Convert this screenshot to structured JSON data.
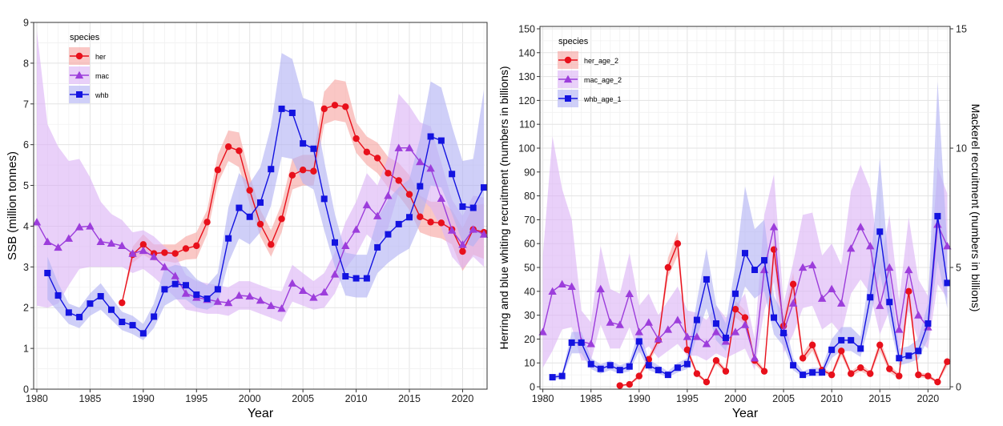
{
  "colors": {
    "her": "#e8101b",
    "mac": "#9c3ddb",
    "whb": "#1313e0",
    "her_band": "#f7a5a2",
    "mac_band": "#dcb3f6",
    "whb_band": "#b1b1f4",
    "grid": "#e6e6e6",
    "axis_text": "#222222"
  },
  "legend_title": "species",
  "chart_data": [
    {
      "type": "line",
      "xlabel": "Year",
      "ylabel": "SSB (million tonnes)",
      "xlim": [
        1979.7,
        2022.3
      ],
      "ylim": [
        0,
        9
      ],
      "xticks": [
        1980,
        1985,
        1990,
        1995,
        2000,
        2005,
        2010,
        2015,
        2020
      ],
      "yticks": [
        0,
        1,
        2,
        3,
        4,
        5,
        6,
        7,
        8,
        9
      ],
      "legend": "top-left",
      "grid": true,
      "series": [
        {
          "name": "her",
          "marker": "circle",
          "color_key": "her",
          "x": [
            1988,
            1989,
            1990,
            1991,
            1992,
            1993,
            1994,
            1995,
            1996,
            1997,
            1998,
            1999,
            2000,
            2001,
            2002,
            2003,
            2004,
            2005,
            2006,
            2007,
            2008,
            2009,
            2010,
            2011,
            2012,
            2013,
            2014,
            2015,
            2016,
            2017,
            2018,
            2019,
            2020,
            2021,
            2022
          ],
          "y": [
            2.12,
            3.3,
            3.55,
            3.33,
            3.35,
            3.33,
            3.45,
            3.52,
            4.1,
            5.38,
            5.95,
            5.85,
            4.88,
            4.05,
            3.55,
            4.18,
            5.25,
            5.38,
            5.35,
            6.88,
            6.97,
            6.93,
            6.15,
            5.82,
            5.67,
            5.3,
            5.12,
            4.78,
            4.23,
            4.1,
            4.08,
            3.92,
            3.38,
            3.92,
            3.85
          ],
          "lower": [
            2.12,
            3.1,
            3.3,
            3.15,
            3.15,
            3.1,
            3.18,
            3.2,
            3.8,
            5.05,
            5.6,
            5.45,
            4.55,
            3.75,
            3.25,
            3.85,
            4.9,
            5.0,
            5.0,
            6.5,
            6.6,
            6.55,
            5.8,
            5.5,
            5.3,
            4.95,
            4.75,
            4.4,
            3.85,
            3.75,
            3.7,
            3.55,
            2.9,
            3.3,
            3.2
          ],
          "upper": [
            2.12,
            3.5,
            3.8,
            3.55,
            3.55,
            3.55,
            3.75,
            3.85,
            4.4,
            5.75,
            6.35,
            6.3,
            5.25,
            4.4,
            3.9,
            4.55,
            5.65,
            5.75,
            5.75,
            7.3,
            7.6,
            7.55,
            6.55,
            6.2,
            6.05,
            5.7,
            5.55,
            5.25,
            4.75,
            4.6,
            4.6,
            4.4,
            3.95,
            4.5,
            4.55
          ]
        },
        {
          "name": "mac",
          "marker": "triangle",
          "color_key": "mac",
          "x": [
            1980,
            1981,
            1982,
            1983,
            1984,
            1985,
            1986,
            1987,
            1988,
            1989,
            1990,
            1991,
            1992,
            1993,
            1994,
            1995,
            1996,
            1997,
            1998,
            1999,
            2000,
            2001,
            2002,
            2003,
            2004,
            2005,
            2006,
            2007,
            2008,
            2009,
            2010,
            2011,
            2012,
            2013,
            2014,
            2015,
            2016,
            2017,
            2018,
            2019,
            2020,
            2021,
            2022
          ],
          "y": [
            4.1,
            3.62,
            3.48,
            3.7,
            3.98,
            4.0,
            3.62,
            3.58,
            3.52,
            3.33,
            3.4,
            3.25,
            3.0,
            2.78,
            2.35,
            2.25,
            2.2,
            2.15,
            2.12,
            2.3,
            2.28,
            2.18,
            2.05,
            1.98,
            2.6,
            2.42,
            2.25,
            2.38,
            2.82,
            3.52,
            3.92,
            4.52,
            4.25,
            4.75,
            5.92,
            5.92,
            5.58,
            5.42,
            4.68,
            3.9,
            3.55,
            3.92,
            3.8
          ],
          "lower": [
            2.05,
            2.0,
            2.1,
            2.55,
            2.95,
            3.0,
            3.0,
            3.0,
            3.0,
            2.85,
            2.95,
            2.75,
            2.5,
            2.25,
            1.95,
            1.9,
            1.85,
            1.85,
            1.8,
            1.95,
            1.95,
            1.85,
            1.75,
            1.65,
            2.15,
            2.05,
            1.95,
            2.0,
            2.35,
            2.95,
            3.3,
            3.8,
            3.55,
            3.95,
            4.85,
            4.95,
            4.7,
            4.45,
            3.95,
            3.25,
            2.95,
            3.25,
            3.0
          ],
          "upper": [
            8.8,
            6.5,
            5.95,
            5.6,
            5.65,
            5.2,
            4.6,
            4.3,
            4.15,
            3.85,
            3.9,
            3.75,
            3.5,
            3.3,
            2.8,
            2.65,
            2.6,
            2.55,
            2.5,
            2.65,
            2.65,
            2.55,
            2.45,
            2.4,
            3.05,
            2.85,
            2.65,
            2.85,
            3.35,
            4.1,
            4.6,
            5.3,
            5.0,
            5.7,
            7.25,
            6.95,
            6.55,
            6.45,
            5.55,
            4.65,
            4.25,
            4.75,
            4.7
          ]
        },
        {
          "name": "whb",
          "marker": "square",
          "color_key": "whb",
          "x": [
            1981,
            1982,
            1983,
            1984,
            1985,
            1986,
            1987,
            1988,
            1989,
            1990,
            1991,
            1992,
            1993,
            1994,
            1995,
            1996,
            1997,
            1998,
            1999,
            2000,
            2001,
            2002,
            2003,
            2004,
            2005,
            2006,
            2007,
            2008,
            2009,
            2010,
            2011,
            2012,
            2013,
            2014,
            2015,
            2016,
            2017,
            2018,
            2019,
            2020,
            2021,
            2022
          ],
          "y": [
            2.85,
            2.3,
            1.88,
            1.77,
            2.1,
            2.28,
            1.95,
            1.65,
            1.57,
            1.37,
            1.78,
            2.45,
            2.58,
            2.55,
            2.32,
            2.22,
            2.45,
            3.7,
            4.45,
            4.23,
            4.58,
            5.4,
            6.88,
            6.78,
            6.03,
            5.9,
            4.67,
            3.6,
            2.77,
            2.72,
            2.72,
            3.48,
            3.8,
            4.05,
            4.22,
            4.98,
            6.2,
            6.1,
            5.28,
            4.48,
            4.45,
            4.95
          ],
          "lower": [
            2.2,
            1.9,
            1.6,
            1.5,
            1.8,
            1.95,
            1.7,
            1.45,
            1.35,
            1.2,
            1.5,
            2.05,
            2.2,
            2.2,
            2.0,
            1.95,
            2.1,
            3.1,
            3.7,
            3.55,
            3.85,
            4.5,
            5.7,
            5.65,
            5.05,
            4.9,
            3.9,
            3.0,
            2.3,
            2.25,
            2.25,
            2.85,
            3.1,
            3.3,
            3.45,
            4.05,
            5.0,
            4.95,
            4.3,
            3.6,
            3.5,
            3.85
          ],
          "upper": [
            3.25,
            2.6,
            2.1,
            2.0,
            2.35,
            2.6,
            2.25,
            1.9,
            1.8,
            1.6,
            2.1,
            2.95,
            3.05,
            3.0,
            2.7,
            2.55,
            2.85,
            4.45,
            5.3,
            5.05,
            5.45,
            6.45,
            8.25,
            8.1,
            7.15,
            7.05,
            5.6,
            4.3,
            3.35,
            3.3,
            3.3,
            4.2,
            4.65,
            4.95,
            5.15,
            6.15,
            7.55,
            7.4,
            6.45,
            5.6,
            5.65,
            7.35
          ]
        }
      ]
    },
    {
      "type": "line",
      "xlabel": "Year",
      "ylabel": "Herring and blue whiting recruitment (numbers in billions)",
      "ylabel_right": "Mackerel recruitment (numbers in billions)",
      "xlim": [
        1979.7,
        2022.3
      ],
      "ylim": [
        -1,
        151
      ],
      "ylim_right": [
        -0.1,
        15.1
      ],
      "xticks": [
        1980,
        1985,
        1990,
        1995,
        2000,
        2005,
        2010,
        2015,
        2020
      ],
      "yticks": [
        0,
        10,
        20,
        30,
        40,
        50,
        60,
        70,
        80,
        90,
        100,
        110,
        120,
        130,
        140,
        150
      ],
      "yticks_right": [
        0,
        5,
        10,
        15
      ],
      "legend": "top-left",
      "grid": true,
      "series": [
        {
          "name": "her_age_2",
          "marker": "circle",
          "color_key": "her",
          "axis": "left",
          "x": [
            1988,
            1989,
            1990,
            1991,
            1992,
            1993,
            1994,
            1995,
            1996,
            1997,
            1998,
            1999,
            2000,
            2001,
            2002,
            2003,
            2004,
            2005,
            2006,
            2007,
            2008,
            2009,
            2010,
            2011,
            2012,
            2013,
            2014,
            2015,
            2016,
            2017,
            2018,
            2019,
            2020,
            2021,
            2022
          ],
          "y": [
            0.5,
            1,
            4.5,
            11.5,
            19.5,
            50,
            60,
            15.5,
            5.5,
            2,
            11,
            6.5,
            32.5,
            29,
            11,
            6.5,
            57.5,
            25.5,
            43,
            12,
            17.5,
            7,
            5,
            15,
            5.5,
            8,
            5.5,
            17.5,
            7.5,
            4.5,
            40,
            5,
            4.5,
            2,
            10.5
          ],
          "lower": [
            0.3,
            0.7,
            3.5,
            10,
            17.5,
            46,
            55,
            13.5,
            4.5,
            1.5,
            9.5,
            5.5,
            29,
            26,
            9.5,
            5.5,
            52,
            22,
            38,
            10,
            15,
            6,
            4,
            13,
            4.5,
            6.5,
            4.5,
            15,
            6,
            3.5,
            35,
            4,
            3.5,
            1.5,
            8.5
          ],
          "upper": [
            0.7,
            1.3,
            5.5,
            13,
            21.5,
            54,
            65,
            17.5,
            6.5,
            2.5,
            12.5,
            7.5,
            36,
            32,
            12.5,
            7.5,
            63,
            29,
            48,
            14,
            20,
            8,
            6,
            17,
            6.5,
            9.5,
            6.5,
            20,
            9,
            5.5,
            45,
            6,
            5.5,
            2.5,
            12.5
          ]
        },
        {
          "name": "mac_age_2",
          "marker": "triangle",
          "color_key": "mac",
          "axis": "right",
          "x": [
            1980,
            1981,
            1982,
            1983,
            1984,
            1985,
            1986,
            1987,
            1988,
            1989,
            1990,
            1991,
            1992,
            1993,
            1994,
            1995,
            1996,
            1997,
            1998,
            1999,
            2000,
            2001,
            2002,
            2003,
            2004,
            2005,
            2006,
            2007,
            2008,
            2009,
            2010,
            2011,
            2012,
            2013,
            2014,
            2015,
            2016,
            2017,
            2018,
            2019,
            2020,
            2021,
            2022
          ],
          "y": [
            2.3,
            4.0,
            4.3,
            4.2,
            1.9,
            1.8,
            4.1,
            2.7,
            2.6,
            3.9,
            2.3,
            2.7,
            2.0,
            2.4,
            2.8,
            2.1,
            2.1,
            1.8,
            2.3,
            1.9,
            2.3,
            2.6,
            1.2,
            4.9,
            6.7,
            2.3,
            3.5,
            5.0,
            5.1,
            3.7,
            4.1,
            3.5,
            5.8,
            6.7,
            5.9,
            3.4,
            5.0,
            2.4,
            4.9,
            3.0,
            2.5,
            6.8,
            5.9
          ],
          "lower": [
            0.8,
            1.5,
            2.4,
            2.5,
            1.1,
            1.1,
            2.6,
            1.6,
            1.6,
            2.5,
            1.4,
            1.7,
            1.2,
            1.5,
            1.8,
            1.3,
            1.3,
            1.1,
            1.4,
            1.2,
            1.4,
            1.6,
            0.7,
            3.2,
            4.4,
            1.4,
            2.2,
            3.3,
            3.4,
            2.4,
            2.7,
            2.2,
            3.9,
            4.5,
            3.9,
            2.2,
            3.2,
            1.5,
            3.2,
            1.9,
            1.6,
            4.3,
            3.7
          ],
          "upper": [
            5.5,
            10.5,
            8.3,
            7.0,
            3.2,
            2.7,
            5.9,
            4.1,
            3.9,
            5.6,
            3.4,
            3.9,
            3.0,
            3.6,
            4.2,
            3.2,
            3.1,
            2.8,
            3.4,
            2.9,
            3.4,
            3.9,
            2.0,
            7.2,
            8.9,
            3.5,
            5.2,
            7.2,
            7.3,
            5.5,
            6.0,
            5.1,
            8.2,
            9.3,
            8.3,
            5.0,
            7.2,
            3.6,
            7.1,
            4.5,
            3.8,
            9.2,
            8.1
          ]
        },
        {
          "name": "whb_age_1",
          "marker": "square",
          "color_key": "whb",
          "axis": "left",
          "x": [
            1981,
            1982,
            1983,
            1984,
            1985,
            1986,
            1987,
            1988,
            1989,
            1990,
            1991,
            1992,
            1993,
            1994,
            1995,
            1996,
            1997,
            1998,
            1999,
            2000,
            2001,
            2002,
            2003,
            2004,
            2005,
            2006,
            2007,
            2008,
            2009,
            2010,
            2011,
            2012,
            2013,
            2014,
            2015,
            2016,
            2017,
            2018,
            2019,
            2020,
            2021,
            2022
          ],
          "y": [
            4,
            4.5,
            18.5,
            18.5,
            9.5,
            7.5,
            9,
            7,
            8.5,
            19,
            9,
            7,
            5,
            8,
            9.5,
            28,
            45,
            26.5,
            20.5,
            39,
            56,
            49,
            53,
            29,
            22.5,
            9,
            5,
            6,
            6,
            15.5,
            19.5,
            19.5,
            16,
            37.5,
            65,
            35.5,
            12,
            13,
            15,
            26.5,
            71.5,
            43.5
          ],
          "lower": [
            3,
            3.5,
            14,
            14,
            7.5,
            5.5,
            7,
            5.5,
            6.5,
            15,
            7,
            5.5,
            4,
            6,
            7.5,
            21,
            33,
            19.5,
            15,
            29,
            42,
            37,
            40,
            22,
            17,
            7,
            4,
            4.5,
            4.5,
            12,
            15,
            15,
            12.5,
            28,
            48,
            27,
            9,
            10,
            11.5,
            20,
            53,
            33
          ],
          "upper": [
            5,
            5.5,
            23,
            23,
            12,
            9.5,
            11,
            9,
            10.5,
            24,
            11.5,
            9,
            6.5,
            10,
            12,
            36,
            58,
            34.5,
            26.5,
            51,
            84,
            66,
            70,
            38,
            30,
            12,
            6.5,
            8,
            8,
            20,
            25,
            25,
            21,
            49,
            96,
            47,
            16,
            17,
            20,
            35,
            128,
            59
          ]
        }
      ]
    }
  ]
}
